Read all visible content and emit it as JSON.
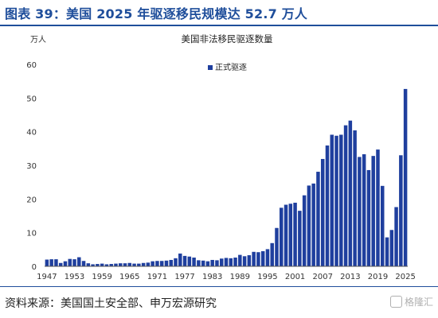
{
  "figure": {
    "title": "图表 39：美国 2025 年驱逐移民规模达 52.7 万人",
    "source": "资料来源：美国国土安全部、申万宏源研究",
    "watermark": "格隆汇"
  },
  "chart_data": {
    "type": "bar",
    "title": "美国非法移民驱逐数量",
    "ylabel": "万人",
    "xlabel": "",
    "ylim": [
      0,
      60
    ],
    "yticks": [
      0,
      10,
      20,
      30,
      40,
      50,
      60
    ],
    "xtick_labels": [
      "1947",
      "1953",
      "1959",
      "1965",
      "1971",
      "1977",
      "1983",
      "1989",
      "1995",
      "2001",
      "2007",
      "2013",
      "2019",
      "2025"
    ],
    "legend": "top-right",
    "grid": false,
    "bar_color": "#1f3f9e",
    "series": [
      {
        "name": "正式驱逐",
        "categories": [
          "1947",
          "1948",
          "1949",
          "1950",
          "1951",
          "1952",
          "1953",
          "1954",
          "1955",
          "1956",
          "1957",
          "1958",
          "1959",
          "1960",
          "1961",
          "1962",
          "1963",
          "1964",
          "1965",
          "1966",
          "1967",
          "1968",
          "1969",
          "1970",
          "1971",
          "1972",
          "1973",
          "1974",
          "1975",
          "1976",
          "1977",
          "1978",
          "1979",
          "1980",
          "1981",
          "1982",
          "1983",
          "1984",
          "1985",
          "1986",
          "1987",
          "1988",
          "1989",
          "1990",
          "1991",
          "1992",
          "1993",
          "1994",
          "1995",
          "1996",
          "1997",
          "1998",
          "1999",
          "2000",
          "2001",
          "2002",
          "2003",
          "2004",
          "2005",
          "2006",
          "2007",
          "2008",
          "2009",
          "2010",
          "2011",
          "2012",
          "2013",
          "2014",
          "2015",
          "2016",
          "2017",
          "2018",
          "2019",
          "2020",
          "2021",
          "2022",
          "2023",
          "2024",
          "2025"
        ],
        "values": [
          2.0,
          2.1,
          2.1,
          1.0,
          1.5,
          2.2,
          2.1,
          2.7,
          1.6,
          0.9,
          0.6,
          0.7,
          0.8,
          0.6,
          0.7,
          0.8,
          0.9,
          0.9,
          1.0,
          0.8,
          0.8,
          1.0,
          1.1,
          1.5,
          1.6,
          1.6,
          1.7,
          1.9,
          2.4,
          3.8,
          3.1,
          2.9,
          2.6,
          1.8,
          1.7,
          1.5,
          1.9,
          1.8,
          2.3,
          2.5,
          2.4,
          2.6,
          3.4,
          3.0,
          3.3,
          4.3,
          4.2,
          4.5,
          5.1,
          6.9,
          11.4,
          17.4,
          18.3,
          18.6,
          18.9,
          16.5,
          21.1,
          24.0,
          24.6,
          28.1,
          31.9,
          35.9,
          39.1,
          38.8,
          39.1,
          41.9,
          43.3,
          40.4,
          32.5,
          33.3,
          28.6,
          32.8,
          34.7,
          23.9,
          8.6,
          10.8,
          17.6,
          33.0,
          52.7
        ]
      }
    ]
  }
}
